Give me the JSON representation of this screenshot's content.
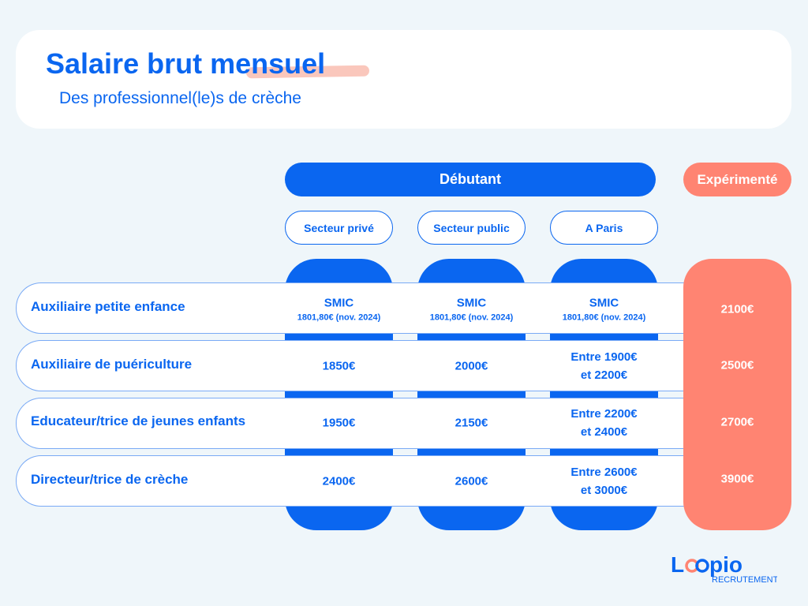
{
  "header": {
    "title": "Salaire brut mensuel",
    "subtitle": "Des professionnel(le)s de crèche"
  },
  "groups": {
    "beginner": "Débutant",
    "experienced": "Expérimenté"
  },
  "sectors": [
    "Secteur privé",
    "Secteur public",
    "A Paris"
  ],
  "rows": [
    {
      "job": "Auxiliaire petite enfance",
      "prive": "SMIC",
      "prive_note": "1801,80€ (nov. 2024)",
      "public": "SMIC",
      "public_note": "1801,80€ (nov. 2024)",
      "paris": "SMIC",
      "paris_note": "1801,80€ (nov. 2024)",
      "experienced": "2100€"
    },
    {
      "job": "Auxiliaire de puériculture",
      "prive": "1850€",
      "public": "2000€",
      "paris": "Entre 1900€",
      "paris_note": "et 2200€",
      "experienced": "2500€"
    },
    {
      "job": "Educateur/trice de jeunes enfants",
      "prive": "1950€",
      "public": "2150€",
      "paris": "Entre 2200€",
      "paris_note": "et 2400€",
      "experienced": "2700€"
    },
    {
      "job": "Directeur/trice de crèche",
      "prive": "2400€",
      "public": "2600€",
      "paris": "Entre 2600€",
      "paris_note": "et 3000€",
      "experienced": "3900€"
    }
  ],
  "logo": {
    "name": "Loopio",
    "tagline": "RECRUTEMENT"
  },
  "colors": {
    "blue": "#0a66f0",
    "salmon": "#ff8472",
    "background": "#eff6fa"
  }
}
